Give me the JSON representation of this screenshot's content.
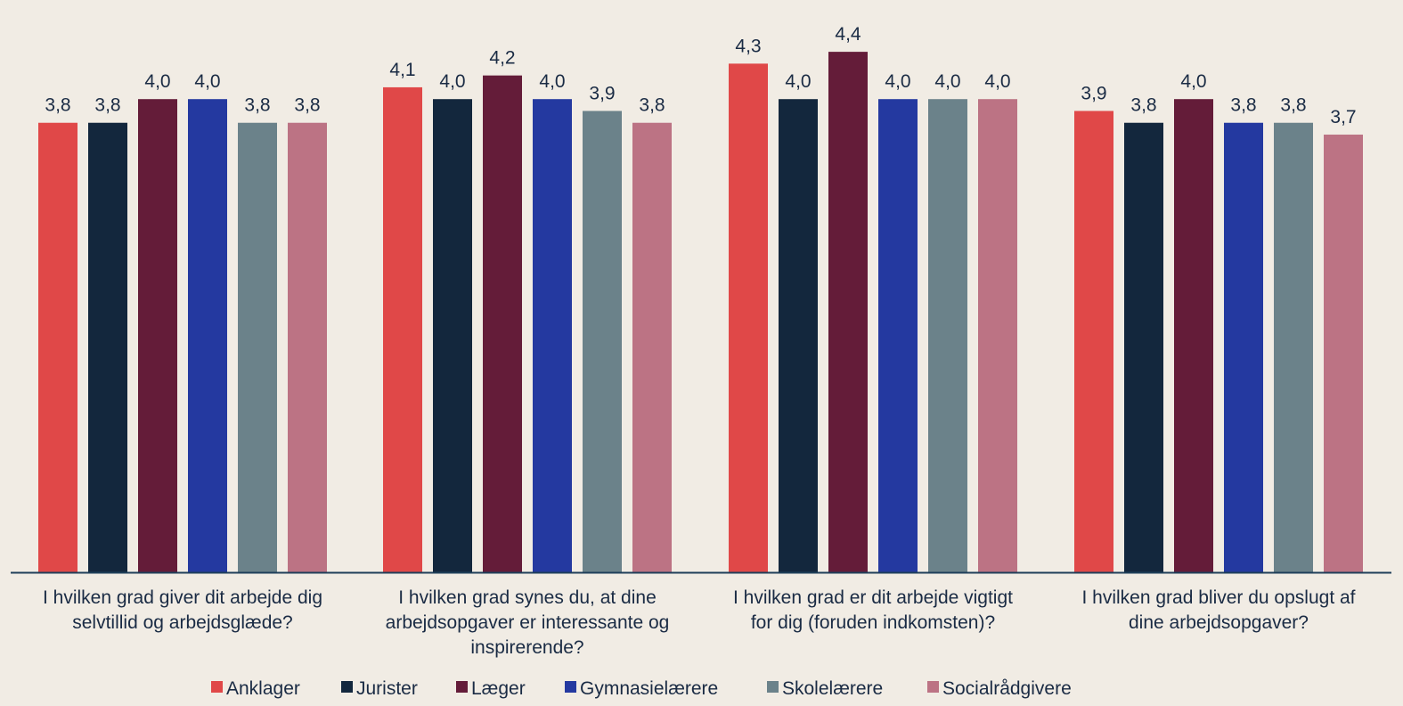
{
  "chart_data": {
    "type": "bar",
    "title": "",
    "xlabel": "",
    "ylabel": "",
    "ylim": [
      0,
      4.4
    ],
    "grid": false,
    "legend_position": "bottom",
    "categories": [
      [
        "I hvilken grad giver dit arbejde dig",
        "selvtillid og arbejdsglæde?"
      ],
      [
        "I hvilken grad synes du, at dine",
        "arbejdsopgaver er interessante og",
        "inspirerende?"
      ],
      [
        "I hvilken grad er dit arbejde vigtigt",
        "for dig (foruden indkomsten)?"
      ],
      [
        "I hvilken grad bliver du opslugt af",
        "dine arbejdsopgaver?"
      ]
    ],
    "series": [
      {
        "name": "Anklager",
        "color": "#e04848",
        "values": [
          3.8,
          4.1,
          4.3,
          3.9
        ],
        "labels": [
          "3,8",
          "4,1",
          "4,3",
          "3,9"
        ]
      },
      {
        "name": "Jurister",
        "color": "#13273d",
        "values": [
          3.8,
          4.0,
          4.0,
          3.8
        ],
        "labels": [
          "3,8",
          "4,0",
          "4,0",
          "3,8"
        ]
      },
      {
        "name": "Læger",
        "color": "#641c39",
        "values": [
          4.0,
          4.2,
          4.4,
          4.0
        ],
        "labels": [
          "4,0",
          "4,2",
          "4,4",
          "4,0"
        ]
      },
      {
        "name": "Gymnasielærere",
        "color": "#2439a0",
        "values": [
          4.0,
          4.0,
          4.0,
          3.8
        ],
        "labels": [
          "4,0",
          "4,0",
          "4,0",
          "3,8"
        ]
      },
      {
        "name": "Skolelærere",
        "color": "#6b828a",
        "values": [
          3.8,
          3.9,
          4.0,
          3.8
        ],
        "labels": [
          "3,8",
          "3,9",
          "4,0",
          "3,8"
        ]
      },
      {
        "name": "Socialrådgivere",
        "color": "#bc7384",
        "values": [
          3.8,
          3.8,
          4.0,
          3.7
        ],
        "labels": [
          "3,8",
          "3,8",
          "4,0",
          "3,7"
        ]
      }
    ]
  },
  "colors": {
    "background": "#f1ece4",
    "axis": "#1f3f5a",
    "text": "#1a2b44"
  }
}
